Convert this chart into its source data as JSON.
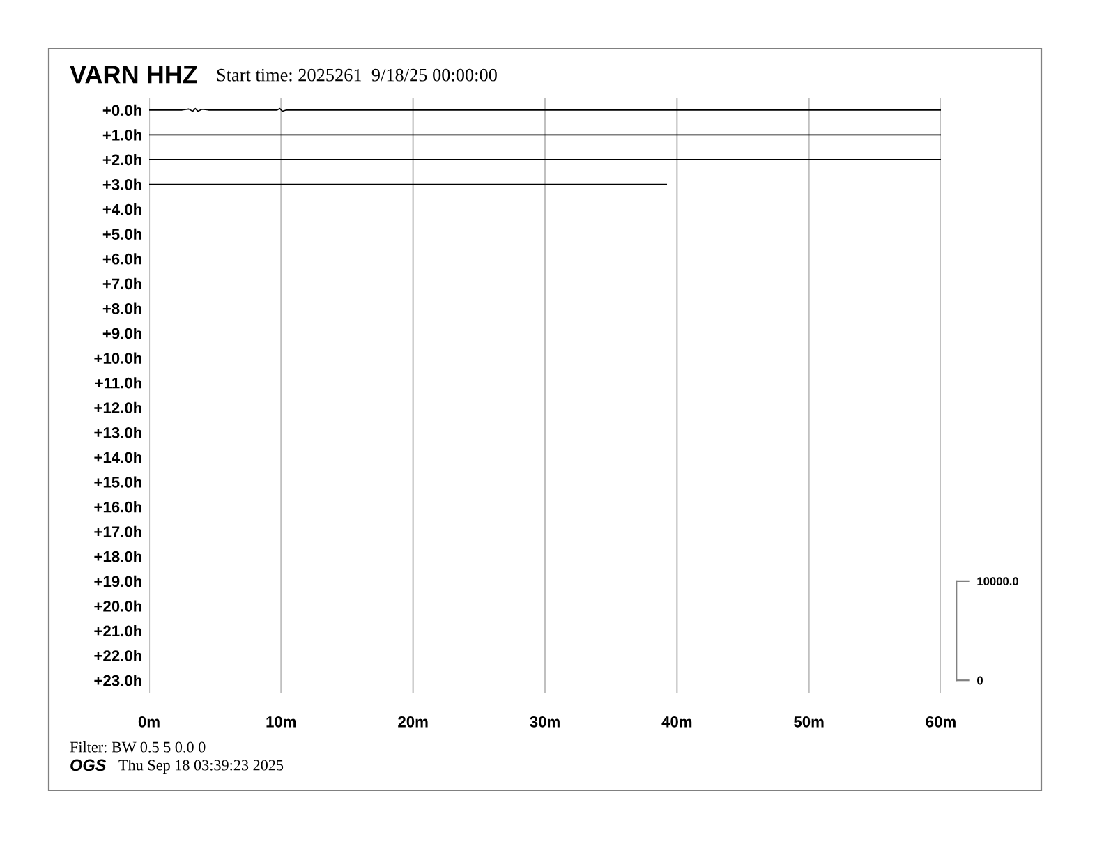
{
  "chart_data": {
    "type": "line",
    "title": "VARN HHZ",
    "subtitle": "Start time: 2025261  9/18/25 00:00:00",
    "annotations": [
      "Filter: BW 0.5 5 0.0 0",
      "OGS",
      "Thu Sep 18 03:39:23 2025"
    ],
    "series": [
      {
        "color": "#000000",
        "x": [
          0,
          2.5,
          3.0,
          3.3,
          3.5,
          3.7,
          4.0,
          4.5,
          9.7,
          9.9,
          10.1,
          10.4,
          60
        ],
        "values": [
          0,
          0,
          -0.04,
          0.05,
          -0.06,
          0.05,
          -0.03,
          0,
          0,
          -0.06,
          0.05,
          0,
          0
        ]
      },
      {
        "color": "#000000",
        "x": [
          0,
          60
        ],
        "values": [
          1,
          1
        ]
      },
      {
        "color": "#000000",
        "x": [
          0,
          60
        ],
        "values": [
          2,
          2
        ]
      },
      {
        "color": "#000000",
        "x": [
          0,
          39.2
        ],
        "values": [
          3,
          3
        ]
      }
    ],
    "xlim": [
      0,
      60
    ],
    "xticks": [
      {
        "value": 0,
        "label": "0m"
      },
      {
        "value": 10,
        "label": "10m"
      },
      {
        "value": 20,
        "label": "20m"
      },
      {
        "value": 30,
        "label": "30m"
      },
      {
        "value": 40,
        "label": "40m"
      },
      {
        "value": 50,
        "label": "50m"
      },
      {
        "value": 60,
        "label": "60m"
      }
    ],
    "ylim": [
      23.5,
      -0.5
    ],
    "yticks": [
      {
        "value": 0,
        "label": "+0.0h"
      },
      {
        "value": 1,
        "label": "+1.0h"
      },
      {
        "value": 2,
        "label": "+2.0h"
      },
      {
        "value": 3,
        "label": "+3.0h"
      },
      {
        "value": 4,
        "label": "+4.0h"
      },
      {
        "value": 5,
        "label": "+5.0h"
      },
      {
        "value": 6,
        "label": "+6.0h"
      },
      {
        "value": 7,
        "label": "+7.0h"
      },
      {
        "value": 8,
        "label": "+8.0h"
      },
      {
        "value": 9,
        "label": "+9.0h"
      },
      {
        "value": 10,
        "label": "+10.0h"
      },
      {
        "value": 11,
        "label": "+11.0h"
      },
      {
        "value": 12,
        "label": "+12.0h"
      },
      {
        "value": 13,
        "label": "+13.0h"
      },
      {
        "value": 14,
        "label": "+14.0h"
      },
      {
        "value": 15,
        "label": "+15.0h"
      },
      {
        "value": 16,
        "label": "+16.0h"
      },
      {
        "value": 17,
        "label": "+17.0h"
      },
      {
        "value": 18,
        "label": "+18.0h"
      },
      {
        "value": 19,
        "label": "+19.0h"
      },
      {
        "value": 20,
        "label": "+20.0h"
      },
      {
        "value": 21,
        "label": "+21.0h"
      },
      {
        "value": 22,
        "label": "+22.0h"
      },
      {
        "value": 23,
        "label": "+23.0h"
      }
    ],
    "y2lim": [
      -1250,
      58750
    ],
    "y2ticks": [
      {
        "value": 0,
        "label": "0"
      },
      {
        "value": 10000,
        "label": "10000.0"
      }
    ],
    "grid": "x",
    "marker": "none",
    "line_style": "solid",
    "legend": false
  }
}
